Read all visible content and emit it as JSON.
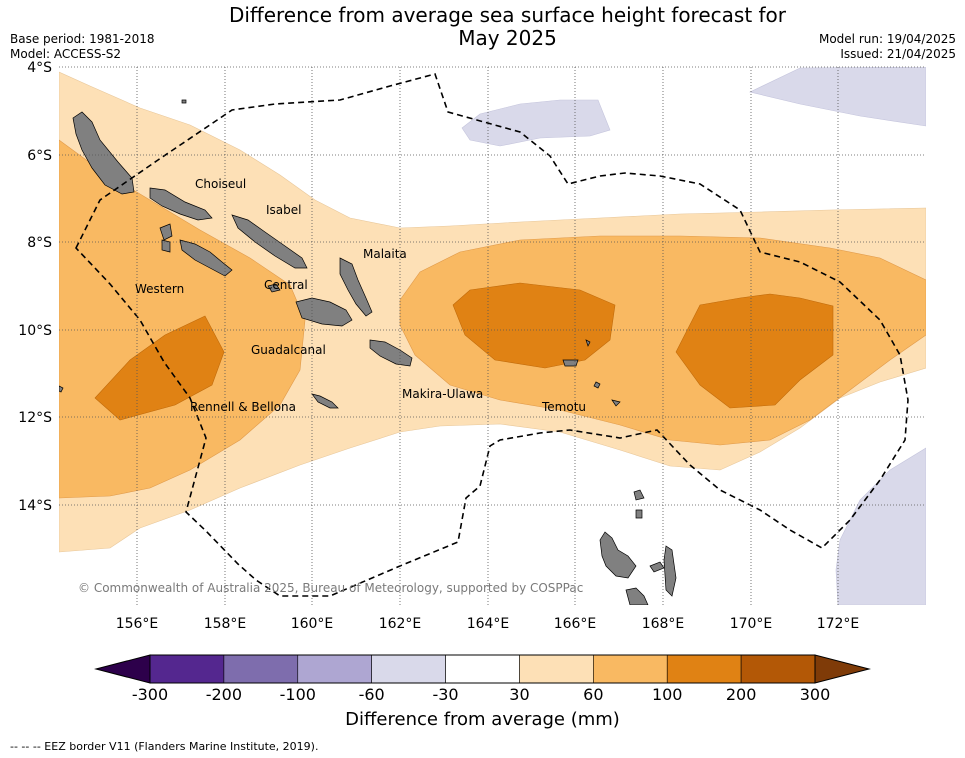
{
  "title": "Difference from average sea surface height forecast for May 2025",
  "title_lines": [
    "Difference from average sea surface height forecast for",
    "May 2025"
  ],
  "meta": {
    "base_period": "Base period: 1981-2018",
    "model": "Model: ACCESS-S2",
    "model_run": "Model run: 19/04/2025",
    "issued": "Issued: 21/04/2025"
  },
  "map": {
    "lat_labels": [
      "4°S",
      "6°S",
      "8°S",
      "10°S",
      "12°S",
      "14°S"
    ],
    "lon_labels": [
      "156°E",
      "158°E",
      "160°E",
      "162°E",
      "164°E",
      "166°E",
      "168°E",
      "170°E",
      "172°E"
    ],
    "lat_range": [
      -16.3,
      -4.0
    ],
    "lon_range": [
      154.2,
      174.0
    ],
    "place_labels": [
      "Choiseul",
      "Isabel",
      "Malaita",
      "Western",
      "Central",
      "Guadalcanal",
      "Rennell & Bellona",
      "Makira-Ulawa",
      "Temotu"
    ],
    "copyright": "© Commonwealth of Australia 2025, Bureau of Meteorology, supported by COSPPac"
  },
  "colorbar": {
    "label": "Difference from average (mm)",
    "ticks": [
      "-300",
      "-200",
      "-100",
      "-60",
      "-30",
      "30",
      "60",
      "100",
      "200",
      "300"
    ],
    "colors": [
      "#54278f",
      "#7e6dad",
      "#aea6d2",
      "#d9d9ea",
      "#ffffff",
      "#fde0b6",
      "#f9b962",
      "#e08214",
      "#b35806"
    ],
    "extend_low": "#2d004b",
    "extend_high": "#7f3b08"
  },
  "footnote": "-- -- -- EEZ border V11 (Flanders Marine Institute, 2019).",
  "colors": {
    "land": "#808080",
    "grid": "#555555"
  }
}
